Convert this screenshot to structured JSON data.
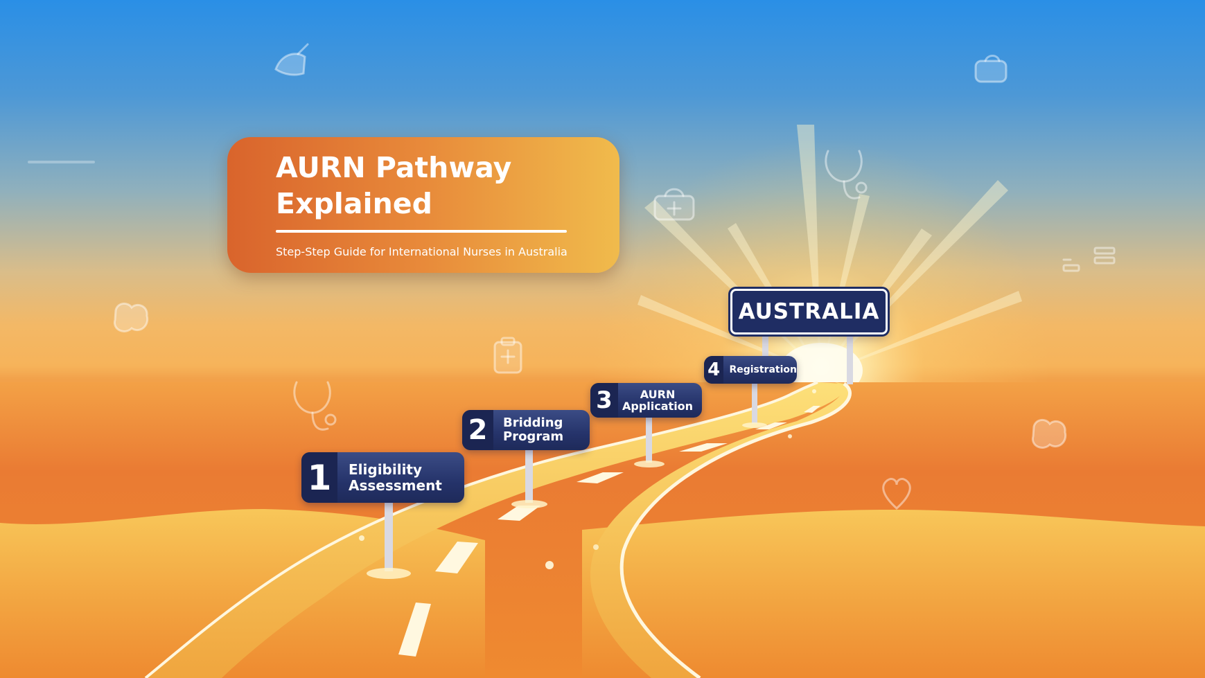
{
  "title_card": {
    "title": "AURN Pathway\nExplained",
    "subtitle": "Step-Step Guide for International Nurses in Australia"
  },
  "destination_sign": {
    "label": "AUSTRALIA"
  },
  "steps": [
    {
      "number": "1",
      "label": "Eligibility\nAssessment"
    },
    {
      "number": "2",
      "label": "Bridding\nProgram"
    },
    {
      "number": "3",
      "label": "AURN\nApplication"
    },
    {
      "number": "4",
      "label": "Registration"
    }
  ],
  "decorative_icons": [
    "nurse-cap-icon",
    "first-aid-kit-icon",
    "stethoscope-icon",
    "clipboard-icon",
    "heart-icon",
    "id-card-icon",
    "bandage-icon"
  ],
  "colors": {
    "sky_top": "#2a8fe6",
    "desert": "#ef8a30",
    "title_card_start": "#d9642c",
    "title_card_end": "#f0bb4c",
    "sign_navy": "#25336a",
    "road": "#f3b94a"
  }
}
